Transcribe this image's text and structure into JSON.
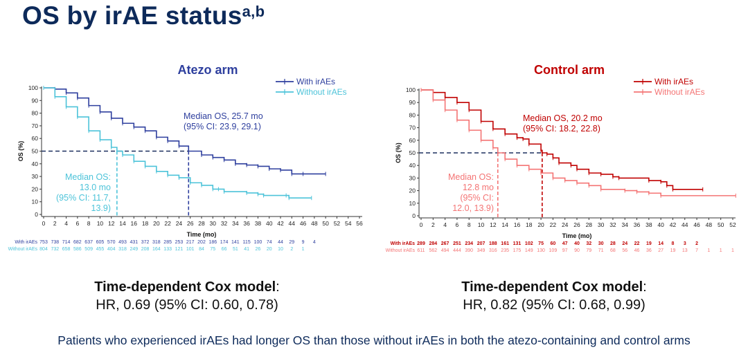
{
  "title": "OS by irAE status",
  "title_superscript": "a,b",
  "footer": "Patients who experienced irAEs had longer OS than those without irAEs in both the atezo-containing and control arms",
  "chart_data": [
    {
      "type": "line",
      "title": "Atezo arm",
      "title_color": "#2e3f9e",
      "xlabel": "Time (mo)",
      "ylabel": "OS (%)",
      "xlim": [
        0,
        56
      ],
      "ylim": [
        0,
        100
      ],
      "xticks": [
        0,
        2,
        4,
        6,
        8,
        10,
        12,
        14,
        16,
        18,
        20,
        22,
        24,
        26,
        28,
        30,
        32,
        34,
        36,
        38,
        40,
        42,
        44,
        46,
        48,
        50,
        52,
        54,
        56
      ],
      "yticks": [
        0,
        10,
        20,
        30,
        40,
        50,
        60,
        70,
        80,
        90,
        100
      ],
      "grid": false,
      "legend": "top-right",
      "series": [
        {
          "name": "With irAEs",
          "color": "#2e3f9e",
          "x": [
            0,
            2,
            4,
            6,
            8,
            10,
            12,
            14,
            16,
            18,
            20,
            22,
            24,
            25.7,
            28,
            30,
            32,
            34,
            36,
            38,
            40,
            42,
            44,
            46,
            50
          ],
          "y": [
            100,
            99,
            96,
            92,
            86,
            81,
            76,
            72,
            69,
            66,
            61,
            58,
            54,
            50,
            47,
            45,
            43,
            40,
            39,
            38,
            36,
            35,
            32,
            32,
            32
          ],
          "median_x": 25.7,
          "annotation": [
            "Median OS, 25.7 mo",
            "(95% CI: 23.9, 29.1)"
          ],
          "at_risk": [
            753,
            738,
            714,
            682,
            637,
            605,
            570,
            493,
            431,
            372,
            318,
            285,
            253,
            217,
            202,
            186,
            174,
            141,
            115,
            100,
            74,
            44,
            29,
            9,
            4
          ]
        },
        {
          "name": "Without irAEs",
          "color": "#4cc3d9",
          "x": [
            0,
            2,
            4,
            6,
            8,
            10,
            12,
            13,
            14,
            16,
            18,
            20,
            22,
            24,
            26,
            28,
            30,
            31,
            32,
            36,
            38,
            39,
            43,
            43.5,
            47.5
          ],
          "y": [
            100,
            93,
            85,
            77,
            66,
            59,
            53,
            50,
            47,
            42,
            38,
            34,
            31,
            29,
            25,
            23,
            20,
            20,
            18,
            17,
            16,
            15,
            15,
            13,
            13
          ],
          "median_x": 13.0,
          "annotation": [
            "Median OS:",
            "13.0 mo",
            "(95% CI: 11.7,",
            "13.9)"
          ],
          "at_risk": [
            804,
            732,
            658,
            586,
            509,
            455,
            404,
            318,
            249,
            208,
            164,
            133,
            121,
            101,
            84,
            75,
            66,
            51,
            41,
            26,
            20,
            10,
            2,
            1
          ]
        }
      ],
      "cox_label": "Time-dependent Cox model",
      "cox_hr": "HR, 0.69 (95% CI: 0.60, 0.78)"
    },
    {
      "type": "line",
      "title": "Control arm",
      "title_color": "#c00000",
      "xlabel": "Time (mo)",
      "ylabel": "OS (%)",
      "xlim": [
        0,
        52
      ],
      "ylim": [
        0,
        100
      ],
      "xticks": [
        0,
        2,
        4,
        6,
        8,
        10,
        12,
        14,
        16,
        18,
        20,
        22,
        24,
        26,
        28,
        30,
        32,
        34,
        36,
        38,
        40,
        42,
        44,
        46,
        48,
        50,
        52
      ],
      "yticks": [
        0,
        10,
        20,
        30,
        40,
        50,
        60,
        70,
        80,
        90,
        100
      ],
      "grid": false,
      "legend": "top-right",
      "series": [
        {
          "name": "With irAEs",
          "color": "#c00000",
          "x": [
            0,
            2,
            4,
            6,
            8,
            10,
            12,
            14,
            16,
            17,
            18,
            20,
            20.2,
            21,
            22,
            23,
            25,
            26,
            28,
            30,
            32,
            33,
            38,
            40,
            41,
            42,
            47
          ],
          "y": [
            100,
            98,
            94,
            90,
            84,
            75,
            69,
            65,
            62,
            61,
            57,
            52,
            50,
            49,
            46,
            42,
            40,
            37,
            34,
            33,
            31,
            30,
            28,
            27,
            24,
            21,
            21
          ],
          "median_x": 20.2,
          "annotation": [
            "Median OS, 20.2 mo",
            "(95% CI: 18.2, 22.8)"
          ],
          "at_risk": [
            289,
            284,
            267,
            251,
            234,
            207,
            188,
            161,
            131,
            102,
            75,
            60,
            47,
            40,
            32,
            30,
            28,
            24,
            22,
            19,
            14,
            8,
            3,
            2
          ]
        },
        {
          "name": "Without irAEs",
          "color": "#f47474",
          "x": [
            0,
            2,
            4,
            6,
            8,
            10,
            12,
            12.8,
            14,
            16,
            18,
            20,
            22,
            24,
            26,
            28,
            30,
            34,
            36,
            38,
            40,
            52.5
          ],
          "y": [
            100,
            92,
            84,
            76,
            68,
            60,
            54,
            50,
            45,
            40,
            37,
            34,
            30,
            28,
            26,
            24,
            21,
            20,
            19,
            18,
            16,
            16
          ],
          "median_x": 12.8,
          "annotation": [
            "Median OS:",
            "12.8 mo",
            "(95% CI:",
            "12.0, 13.9)"
          ],
          "at_risk": [
            611,
            562,
            494,
            444,
            390,
            349,
            316,
            235,
            175,
            149,
            130,
            109,
            97,
            90,
            79,
            71,
            68,
            56,
            46,
            36,
            27,
            19,
            13,
            7,
            1,
            1,
            1
          ]
        }
      ],
      "cox_label": "Time-dependent Cox model",
      "cox_hr": "HR, 0.82 (95% CI: 0.68, 0.99)"
    }
  ]
}
